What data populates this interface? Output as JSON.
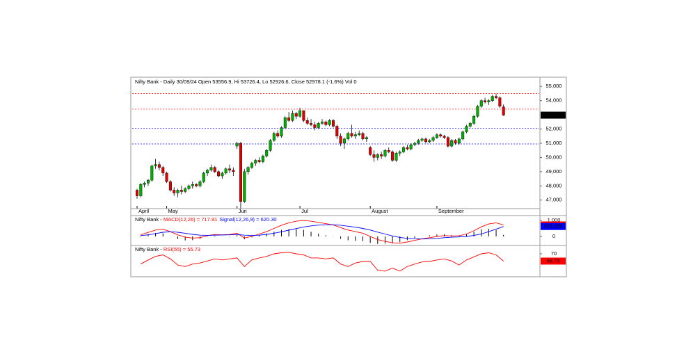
{
  "chart_data": [
    {
      "type": "candlestick",
      "title": "Nifty Bank - Daily 30/09/24 Open 53556.9, Hi 53726.4, Lo 52926.6, Close 52978.1 (-1.6%) Vol 0",
      "categories": [
        "April",
        null,
        null,
        null,
        null,
        null,
        null,
        null,
        "May",
        null,
        null,
        null,
        null,
        null,
        null,
        null,
        null,
        null,
        null,
        null,
        null,
        null,
        null,
        null,
        null,
        null,
        null,
        "Jun",
        null,
        null,
        null,
        null,
        null,
        null,
        null,
        null,
        null,
        null,
        null,
        null,
        null,
        null,
        null,
        null,
        "Jul",
        null,
        null,
        null,
        null,
        null,
        null,
        null,
        null,
        null,
        null,
        null,
        null,
        null,
        null,
        null,
        null,
        null,
        null,
        "August",
        null,
        null,
        null,
        null,
        null,
        null,
        null,
        null,
        null,
        null,
        null,
        null,
        null,
        null,
        null,
        null,
        null,
        "September",
        null,
        null,
        null,
        null,
        null,
        null,
        null,
        null,
        null,
        null,
        null,
        null,
        null,
        null,
        null,
        null,
        null,
        null
      ],
      "candles": [
        [
          47700,
          47800,
          47100,
          47300
        ],
        [
          47300,
          48200,
          47200,
          48100
        ],
        [
          48100,
          48300,
          47900,
          48200
        ],
        [
          48200,
          48500,
          48000,
          48400
        ],
        [
          48400,
          49500,
          48300,
          49400
        ],
        [
          49400,
          49900,
          49200,
          49500
        ],
        [
          49500,
          49700,
          49100,
          49300
        ],
        [
          49300,
          49400,
          48700,
          48900
        ],
        [
          48900,
          49000,
          48200,
          48300
        ],
        [
          48300,
          48400,
          47600,
          47700
        ],
        [
          47700,
          47900,
          47300,
          47500
        ],
        [
          47500,
          47800,
          47200,
          47700
        ],
        [
          47700,
          48000,
          47400,
          47600
        ],
        [
          47600,
          47900,
          47500,
          47800
        ],
        [
          47800,
          48100,
          47700,
          48000
        ],
        [
          48000,
          48300,
          47800,
          48100
        ],
        [
          48100,
          48200,
          47900,
          48000
        ],
        [
          48000,
          48400,
          47900,
          48300
        ],
        [
          48300,
          49000,
          48200,
          48900
        ],
        [
          48900,
          49200,
          48700,
          49100
        ],
        [
          49100,
          49500,
          49000,
          49300
        ],
        [
          49300,
          49400,
          48900,
          49000
        ],
        [
          49000,
          49100,
          48600,
          48700
        ],
        [
          48700,
          49000,
          48500,
          48900
        ],
        [
          48900,
          49300,
          48800,
          49200
        ],
        [
          49200,
          49500,
          48900,
          49100
        ],
        [
          49100,
          49300,
          48700,
          49000
        ],
        [
          50800,
          51100,
          50600,
          51000
        ],
        [
          51000,
          51100,
          46400,
          46900
        ],
        [
          46900,
          49200,
          46800,
          49000
        ],
        [
          49000,
          49400,
          48800,
          49300
        ],
        [
          49300,
          49700,
          49200,
          49600
        ],
        [
          49600,
          49900,
          49400,
          49800
        ],
        [
          49800,
          50000,
          49600,
          49700
        ],
        [
          49700,
          50200,
          49600,
          50100
        ],
        [
          50100,
          50600,
          50000,
          50500
        ],
        [
          50500,
          51300,
          50400,
          51200
        ],
        [
          51200,
          51800,
          51100,
          51700
        ],
        [
          51700,
          51900,
          51400,
          51500
        ],
        [
          51500,
          52200,
          51400,
          52100
        ],
        [
          52100,
          52900,
          52000,
          52800
        ],
        [
          52800,
          53200,
          52500,
          52600
        ],
        [
          52600,
          53300,
          52500,
          53100
        ],
        [
          53100,
          53200,
          52700,
          52900
        ],
        [
          52900,
          53500,
          52800,
          53300
        ],
        [
          53300,
          53300,
          52500,
          52600
        ],
        [
          52600,
          52800,
          52300,
          52400
        ],
        [
          52400,
          52700,
          52200,
          52300
        ],
        [
          52300,
          52500,
          51900,
          52100
        ],
        [
          52100,
          52500,
          52000,
          52400
        ],
        [
          52400,
          52700,
          52300,
          52500
        ],
        [
          52500,
          52600,
          52200,
          52300
        ],
        [
          52300,
          52700,
          52200,
          52600
        ],
        [
          52600,
          52700,
          52100,
          52200
        ],
        [
          52200,
          52300,
          51300,
          51500
        ],
        [
          51500,
          51700,
          50800,
          51000
        ],
        [
          51000,
          51400,
          50600,
          51300
        ],
        [
          51300,
          51800,
          51200,
          51700
        ],
        [
          51700,
          52300,
          51400,
          51500
        ],
        [
          51500,
          51800,
          51300,
          51600
        ],
        [
          51600,
          51900,
          51500,
          51700
        ],
        [
          51700,
          51800,
          51200,
          51300
        ],
        [
          51300,
          51500,
          51100,
          51400
        ],
        [
          50700,
          50800,
          50100,
          50200
        ],
        [
          50200,
          50500,
          49700,
          50000
        ],
        [
          50000,
          50300,
          49800,
          50200
        ],
        [
          50200,
          50400,
          49900,
          50100
        ],
        [
          50100,
          50600,
          50000,
          50500
        ],
        [
          50500,
          50700,
          50300,
          50400
        ],
        [
          50400,
          50500,
          49700,
          49800
        ],
        [
          49800,
          50400,
          49700,
          50300
        ],
        [
          50300,
          50500,
          50100,
          50400
        ],
        [
          50400,
          50800,
          50300,
          50700
        ],
        [
          50700,
          50900,
          50500,
          50600
        ],
        [
          50600,
          51000,
          50500,
          50900
        ],
        [
          50900,
          51100,
          50800,
          51000
        ],
        [
          51000,
          51300,
          50900,
          51200
        ],
        [
          51200,
          51400,
          51100,
          51300
        ],
        [
          51300,
          51400,
          51000,
          51100
        ],
        [
          51100,
          51300,
          51000,
          51200
        ],
        [
          51200,
          51500,
          51100,
          51400
        ],
        [
          51400,
          51700,
          51300,
          51600
        ],
        [
          51600,
          51700,
          51400,
          51500
        ],
        [
          51500,
          51600,
          51300,
          51400
        ],
        [
          51400,
          51500,
          50700,
          50800
        ],
        [
          50800,
          51300,
          50700,
          51200
        ],
        [
          51200,
          51300,
          50900,
          51000
        ],
        [
          51000,
          51400,
          50900,
          51300
        ],
        [
          51300,
          51900,
          51200,
          51800
        ],
        [
          51800,
          52300,
          51700,
          52200
        ],
        [
          52200,
          52500,
          52100,
          52400
        ],
        [
          52400,
          53000,
          52300,
          52900
        ],
        [
          52900,
          53700,
          52800,
          53600
        ],
        [
          53600,
          54100,
          53500,
          54000
        ],
        [
          54000,
          54200,
          53800,
          53900
        ],
        [
          53900,
          54100,
          53700,
          54000
        ],
        [
          54000,
          54400,
          53900,
          54300
        ],
        [
          54300,
          54500,
          54100,
          54200
        ],
        [
          54200,
          54300,
          53500,
          53600
        ],
        [
          53556.9,
          53726.4,
          52926.6,
          52978.1
        ]
      ],
      "up_color": "#00b000",
      "down_color": "#e00000",
      "ylim": [
        46400,
        55600
      ],
      "yticks": [
        {
          "value": 47000,
          "label": "47,000"
        },
        {
          "value": 48000,
          "label": "48,000"
        },
        {
          "value": 49000,
          "label": "49,000"
        },
        {
          "value": 50000,
          "label": "50,000"
        },
        {
          "value": 51000,
          "label": "51,000"
        },
        {
          "value": 52000,
          "label": "52,000"
        },
        {
          "value": 54000,
          "label": "54,000"
        },
        {
          "value": 55000,
          "label": "55,000"
        }
      ],
      "hlines": [
        {
          "value": 54500,
          "color": "#ff0000"
        },
        {
          "value": 53400,
          "color": "#ff0000"
        },
        {
          "value": 52050,
          "color": "#0000ff"
        },
        {
          "value": 50950,
          "color": "#0000ff"
        }
      ],
      "last_value": 52978.1,
      "last_label": "52,978.1"
    },
    {
      "type": "line",
      "label": "Nifty Bank - ",
      "series": [
        {
          "name": "MACD(12,26) = 717.91",
          "color": "#ff0000",
          "last_label": "717.91",
          "values": [
            100,
            250,
            400,
            450,
            300,
            100,
            -50,
            -100,
            -80,
            50,
            120,
            100,
            120,
            200,
            -100,
            0,
            150,
            300,
            500,
            700,
            850,
            950,
            1000,
            950,
            880,
            800,
            720,
            550,
            400,
            300,
            200,
            0,
            -200,
            -300,
            -400,
            -420,
            -350,
            -250,
            -150,
            -80,
            0,
            50,
            30,
            40,
            150,
            350,
            600,
            780,
            850,
            717.91
          ]
        },
        {
          "name": "Signal(12,26,9) = 620.30",
          "color": "#0000ff",
          "last_label": "620.299",
          "values": [
            50,
            100,
            180,
            260,
            290,
            260,
            200,
            130,
            80,
            70,
            80,
            90,
            100,
            120,
            80,
            60,
            80,
            130,
            200,
            290,
            390,
            490,
            590,
            660,
            710,
            730,
            730,
            700,
            640,
            580,
            500,
            400,
            270,
            150,
            30,
            -60,
            -120,
            -150,
            -160,
            -150,
            -120,
            -80,
            -50,
            -30,
            0,
            60,
            150,
            300,
            450,
            620.3
          ]
        }
      ],
      "histogram": {
        "color": "#000000",
        "values": [
          50,
          150,
          220,
          190,
          10,
          -160,
          -250,
          -230,
          -160,
          -20,
          40,
          10,
          20,
          80,
          -180,
          -60,
          70,
          170,
          300,
          410,
          460,
          460,
          410,
          290,
          170,
          70,
          -10,
          -150,
          -240,
          -280,
          -300,
          -400,
          -470,
          -450,
          -430,
          -360,
          -230,
          -100,
          10,
          70,
          120,
          130,
          80,
          70,
          150,
          290,
          450,
          480,
          400,
          98
        ]
      },
      "ylim": [
        -522,
        1217
      ],
      "yticks": [
        {
          "value": 1000,
          "label": "1,000"
        },
        0
      ]
    },
    {
      "type": "line",
      "label": "Nifty Bank - ",
      "series": [
        {
          "name": "RSI(55) = 55.73",
          "color": "#ff0000",
          "last_label": "55.73",
          "values": [
            50,
            58,
            65,
            68,
            60,
            48,
            45,
            50,
            52,
            56,
            60,
            58,
            60,
            62,
            45,
            58,
            62,
            65,
            70,
            72,
            73,
            70,
            68,
            62,
            62,
            60,
            62,
            50,
            45,
            52,
            55,
            55,
            38,
            36,
            42,
            36,
            45,
            50,
            54,
            55,
            58,
            60,
            56,
            48,
            58,
            64,
            70,
            72,
            68,
            55.73
          ]
        }
      ],
      "ylim": [
        25,
        85
      ],
      "yticks": [
        70
      ]
    }
  ]
}
